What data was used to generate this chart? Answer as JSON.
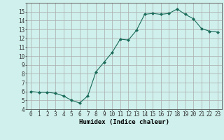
{
  "x": [
    0,
    1,
    2,
    3,
    4,
    5,
    6,
    7,
    8,
    9,
    10,
    11,
    12,
    13,
    14,
    15,
    16,
    17,
    18,
    19,
    20,
    21,
    22,
    23
  ],
  "y": [
    6.0,
    5.9,
    5.9,
    5.8,
    5.5,
    5.0,
    4.7,
    5.5,
    8.2,
    9.3,
    10.4,
    11.9,
    11.8,
    12.9,
    14.7,
    14.8,
    14.7,
    14.8,
    15.3,
    14.7,
    14.2,
    13.1,
    12.8,
    12.7
  ],
  "line_color": "#1a6b5a",
  "marker": "D",
  "marker_size": 2.0,
  "bg_color": "#cff0ec",
  "grid_color_major": "#aaaaaa",
  "grid_color_minor": "#e8a0a0",
  "xlabel": "Humidex (Indice chaleur)",
  "xlim": [
    -0.5,
    23.5
  ],
  "ylim": [
    4,
    16
  ],
  "yticks": [
    4,
    5,
    6,
    7,
    8,
    9,
    10,
    11,
    12,
    13,
    14,
    15
  ],
  "xticks": [
    0,
    1,
    2,
    3,
    4,
    5,
    6,
    7,
    8,
    9,
    10,
    11,
    12,
    13,
    14,
    15,
    16,
    17,
    18,
    19,
    20,
    21,
    22,
    23
  ],
  "tick_fontsize": 5.5,
  "xlabel_fontsize": 6.5
}
